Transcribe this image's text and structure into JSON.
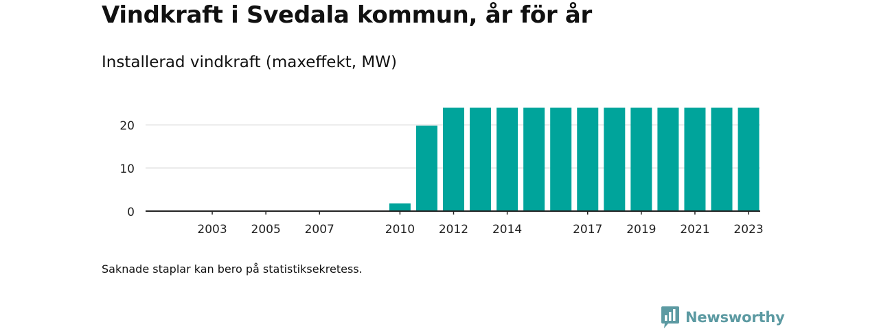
{
  "title": "Vindkraft i Svedala kommun, år för år",
  "subtitle": "Installerad vindkraft (maxeffekt, MW)",
  "footnote": "Saknade staplar kan bero på statistiksekretess.",
  "brand": {
    "name": "Newsworthy",
    "logo_icon": "bar-chart-speech-bubble-icon",
    "color": "#5c9aa2"
  },
  "colors": {
    "bar": "#00a49b",
    "grid": "#d9d9d9",
    "axis": "#222222",
    "text": "#111111"
  },
  "chart_data": {
    "type": "bar",
    "categories": [
      "2002",
      "2003",
      "2004",
      "2005",
      "2006",
      "2007",
      "2008",
      "2009",
      "2010",
      "2011",
      "2012",
      "2013",
      "2014",
      "2015",
      "2016",
      "2017",
      "2018",
      "2019",
      "2020",
      "2021",
      "2022",
      "2023"
    ],
    "x_tick_labels": [
      "2003",
      "2005",
      "2007",
      "2010",
      "2012",
      "2014",
      "2017",
      "2019",
      "2021",
      "2023"
    ],
    "values": [
      0,
      0,
      0,
      0,
      0,
      0,
      0,
      0,
      1.8,
      19.8,
      24,
      24,
      24,
      24,
      24,
      24,
      24,
      24,
      24,
      24,
      24,
      24
    ],
    "y_ticks": [
      0,
      10,
      20
    ],
    "ylim": [
      0,
      24
    ],
    "title": "Installerad vindkraft (maxeffekt, MW)",
    "xlabel": "",
    "ylabel": "",
    "grid": true
  }
}
